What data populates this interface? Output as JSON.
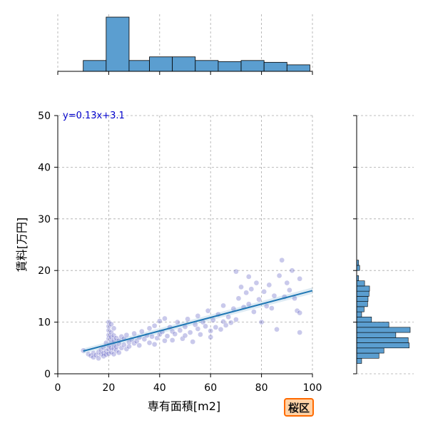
{
  "chart_data": {
    "type": "scatter",
    "xlabel": "専有面積[m2]",
    "ylabel": "賃料[万円]",
    "xlim": [
      0,
      100
    ],
    "ylim": [
      0,
      50
    ],
    "x_ticks": [
      0,
      20,
      40,
      60,
      80,
      100
    ],
    "y_ticks": [
      0,
      10,
      20,
      30,
      40,
      50
    ],
    "grid": true,
    "regression": {
      "equation": "y=0.13x+3.1",
      "slope": 0.13,
      "intercept": 3.1,
      "x_range": [
        10,
        100
      ]
    },
    "points": [
      [
        10,
        4.5
      ],
      [
        12,
        3.8
      ],
      [
        13,
        3.5
      ],
      [
        14,
        4.0
      ],
      [
        14,
        3.2
      ],
      [
        15,
        3.6
      ],
      [
        16,
        4.2
      ],
      [
        16,
        3.0
      ],
      [
        17,
        4.6
      ],
      [
        17,
        3.8
      ],
      [
        18,
        4.0
      ],
      [
        18,
        3.4
      ],
      [
        18,
        5.1
      ],
      [
        19,
        4.4
      ],
      [
        19,
        3.7
      ],
      [
        19,
        6.0
      ],
      [
        20,
        3.9
      ],
      [
        20,
        4.8
      ],
      [
        20,
        5.5
      ],
      [
        20,
        6.8
      ],
      [
        20,
        7.5
      ],
      [
        20,
        8.4
      ],
      [
        20,
        9.2
      ],
      [
        20,
        10.0
      ],
      [
        21,
        4.2
      ],
      [
        21,
        5.0
      ],
      [
        21,
        6.2
      ],
      [
        21,
        7.1
      ],
      [
        21,
        8.0
      ],
      [
        21,
        9.6
      ],
      [
        22,
        3.8
      ],
      [
        22,
        4.9
      ],
      [
        22,
        5.6
      ],
      [
        22,
        6.5
      ],
      [
        22,
        7.4
      ],
      [
        22,
        8.8
      ],
      [
        23,
        4.5
      ],
      [
        23,
        5.2
      ],
      [
        23,
        6.9
      ],
      [
        24,
        5.8
      ],
      [
        24,
        4.1
      ],
      [
        24,
        6.4
      ],
      [
        25,
        5.0
      ],
      [
        25,
        7.2
      ],
      [
        26,
        5.6
      ],
      [
        26,
        6.8
      ],
      [
        27,
        4.8
      ],
      [
        27,
        7.5
      ],
      [
        28,
        6.1
      ],
      [
        28,
        5.3
      ],
      [
        29,
        6.6
      ],
      [
        30,
        5.9
      ],
      [
        30,
        7.8
      ],
      [
        31,
        6.3
      ],
      [
        32,
        7.0
      ],
      [
        32,
        5.5
      ],
      [
        33,
        8.2
      ],
      [
        34,
        6.7
      ],
      [
        35,
        7.4
      ],
      [
        36,
        6.0
      ],
      [
        36,
        8.8
      ],
      [
        37,
        7.2
      ],
      [
        38,
        5.7
      ],
      [
        38,
        9.3
      ],
      [
        39,
        6.9
      ],
      [
        40,
        7.6
      ],
      [
        40,
        10.2
      ],
      [
        41,
        8.1
      ],
      [
        42,
        6.4
      ],
      [
        42,
        10.7
      ],
      [
        43,
        7.3
      ],
      [
        44,
        9.0
      ],
      [
        45,
        8.2
      ],
      [
        45,
        6.5
      ],
      [
        46,
        7.7
      ],
      [
        47,
        10.0
      ],
      [
        48,
        8.4
      ],
      [
        49,
        6.8
      ],
      [
        50,
        9.1
      ],
      [
        50,
        7.4
      ],
      [
        51,
        10.6
      ],
      [
        52,
        8.0
      ],
      [
        53,
        6.2
      ],
      [
        54,
        9.5
      ],
      [
        55,
        8.7
      ],
      [
        55,
        11.2
      ],
      [
        56,
        7.6
      ],
      [
        57,
        10.0
      ],
      [
        58,
        9.2
      ],
      [
        59,
        12.2
      ],
      [
        60,
        8.3
      ],
      [
        60,
        7.1
      ],
      [
        61,
        10.4
      ],
      [
        62,
        9.0
      ],
      [
        63,
        11.5
      ],
      [
        64,
        8.6
      ],
      [
        65,
        10.1
      ],
      [
        65,
        13.2
      ],
      [
        66,
        9.4
      ],
      [
        67,
        11.0
      ],
      [
        68,
        9.9
      ],
      [
        69,
        12.6
      ],
      [
        70,
        10.5
      ],
      [
        70,
        19.8
      ],
      [
        71,
        14.6
      ],
      [
        72,
        16.8
      ],
      [
        73,
        12.9
      ],
      [
        74,
        15.7
      ],
      [
        75,
        18.8
      ],
      [
        75,
        13.5
      ],
      [
        76,
        16.4
      ],
      [
        77,
        12.0
      ],
      [
        78,
        17.6
      ],
      [
        79,
        14.4
      ],
      [
        80,
        10.0
      ],
      [
        81,
        15.9
      ],
      [
        82,
        13.1
      ],
      [
        83,
        17.2
      ],
      [
        84,
        12.7
      ],
      [
        85,
        15.1
      ],
      [
        86,
        8.6
      ],
      [
        87,
        19.0
      ],
      [
        88,
        22.0
      ],
      [
        89,
        14.9
      ],
      [
        90,
        17.6
      ],
      [
        91,
        16.2
      ],
      [
        92,
        20.0
      ],
      [
        93,
        14.6
      ],
      [
        94,
        12.2
      ],
      [
        95,
        8.0
      ],
      [
        95,
        11.8
      ],
      [
        95,
        18.4
      ]
    ],
    "marginal_x": {
      "bin_edges": [
        10,
        19,
        28,
        36,
        45,
        54,
        63,
        72,
        81,
        90,
        99
      ],
      "counts": [
        3,
        15,
        3,
        4,
        4,
        3,
        2.7,
        3,
        2.5,
        1.8
      ]
    },
    "marginal_y": {
      "bin_edges": [
        2,
        3,
        4,
        5,
        6,
        7,
        8,
        9,
        10,
        11,
        12,
        13,
        14,
        15,
        16,
        17,
        18,
        19,
        20,
        21,
        22
      ],
      "counts": [
        1,
        4.5,
        5.5,
        10.6,
        10.4,
        7.9,
        10.8,
        6.5,
        3.0,
        1.0,
        1.5,
        2.2,
        2.3,
        2.5,
        2.6,
        1.6,
        0.4,
        0,
        0.6,
        0.4
      ]
    },
    "colors": {
      "bar": "#5b9ed0",
      "points": "#3d3db8",
      "line": "#1f77b4",
      "grid": "#aaaaaa"
    }
  },
  "badge": {
    "label": "桜区"
  }
}
